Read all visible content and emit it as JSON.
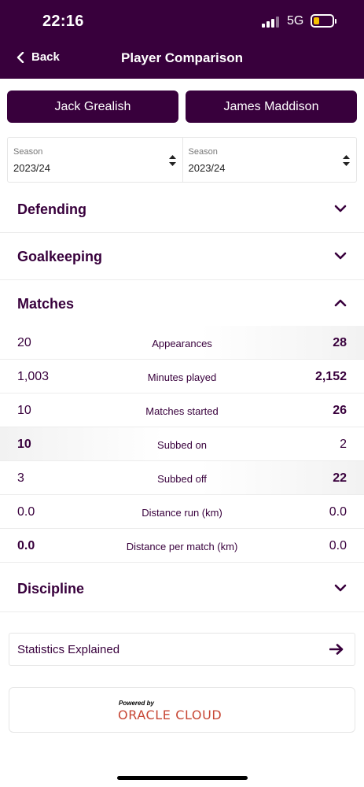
{
  "status": {
    "time": "22:16",
    "network": "5G"
  },
  "header": {
    "back_label": "Back",
    "title": "Player Comparison"
  },
  "players": {
    "left": "Jack Grealish",
    "right": "James Maddison"
  },
  "season": {
    "label": "Season",
    "left": "2023/24",
    "right": "2023/24"
  },
  "sections": {
    "defending": "Defending",
    "goalkeeping": "Goalkeeping",
    "matches": "Matches",
    "discipline": "Discipline"
  },
  "matches_stats": [
    {
      "label": "Appearances",
      "left": "20",
      "right": "28"
    },
    {
      "label": "Minutes played",
      "left": "1,003",
      "right": "2,152"
    },
    {
      "label": "Matches started",
      "left": "10",
      "right": "26"
    },
    {
      "label": "Subbed on",
      "left": "10",
      "right": "2"
    },
    {
      "label": "Subbed off",
      "left": "3",
      "right": "22"
    },
    {
      "label": "Distance run (km)",
      "left": "0.0",
      "right": "0.0"
    },
    {
      "label": "Distance per match (km)",
      "left": "0.0",
      "right": "0.0"
    }
  ],
  "explained": {
    "label": "Statistics Explained"
  },
  "sponsor": {
    "powered_by": "Powered by",
    "brand": "ORACLE CLOUD"
  },
  "colors": {
    "primary": "#38003c",
    "oracle_red": "#c74634",
    "battery": "#f5c000"
  }
}
